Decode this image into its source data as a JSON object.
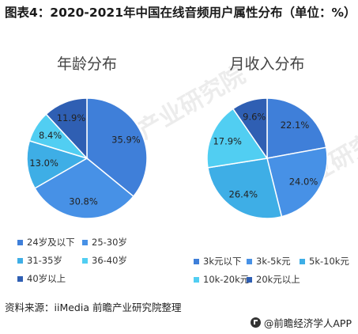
{
  "title": "图表4：2020-2021年中国在线音频用户属性分布（单位：%）",
  "source": "资料来源：iiMedia 前瞻产业研究院整理",
  "brand": "@前瞻经济学人APP",
  "watermark": "前瞻产业研究院",
  "chart_data": [
    {
      "type": "pie",
      "title": "年龄分布",
      "categories": [
        "24岁及以下",
        "25-30岁",
        "31-35岁",
        "36-40岁",
        "40岁以上"
      ],
      "values": [
        35.9,
        30.8,
        13.0,
        8.4,
        11.9
      ],
      "labels": [
        "35.9%",
        "30.8%",
        "13.0%",
        "8.4%",
        "11.9%"
      ],
      "colors": [
        "#3f7fd9",
        "#4791e6",
        "#3eaee6",
        "#51cef2",
        "#2f5fb3"
      ],
      "legend_position": "bottom"
    },
    {
      "type": "pie",
      "title": "月收入分布",
      "categories": [
        "3k元以下",
        "3k-5k元",
        "5k-10k元",
        "10k-20k元",
        "20k元以上"
      ],
      "values": [
        22.1,
        24.0,
        26.4,
        17.9,
        9.6
      ],
      "labels": [
        "22.1%",
        "24.0%",
        "26.4%",
        "17.9%",
        "9.6%"
      ],
      "colors": [
        "#3f7fd9",
        "#4791e6",
        "#3eaee6",
        "#51cef2",
        "#2f5fb3"
      ],
      "legend_position": "bottom"
    }
  ]
}
